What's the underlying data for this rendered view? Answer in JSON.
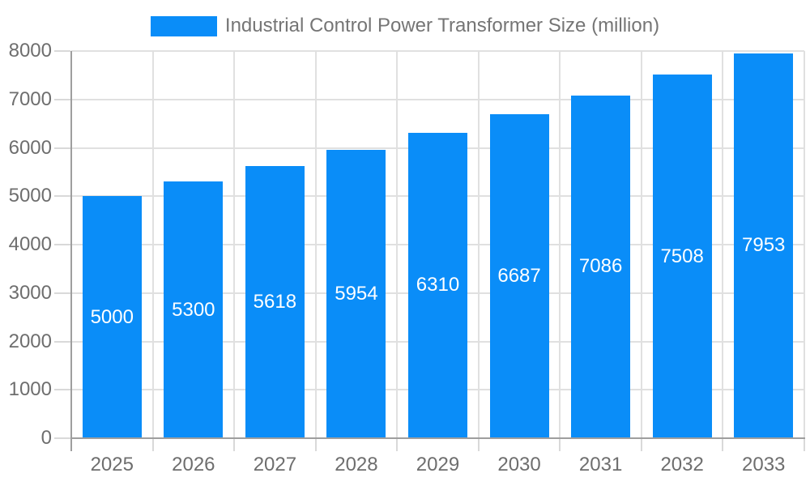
{
  "chart_data": {
    "type": "bar",
    "title": "Industrial Control Power Transformer Size (million)",
    "legend": [
      "Industrial Control Power Transformer Size (million)"
    ],
    "legend_position": "top",
    "categories": [
      "2025",
      "2026",
      "2027",
      "2028",
      "2029",
      "2030",
      "2031",
      "2032",
      "2033"
    ],
    "series": [
      {
        "name": "Industrial Control Power Transformer Size (million)",
        "values": [
          5000,
          5300,
          5618,
          5954,
          6310,
          6687,
          7086,
          7508,
          7953
        ]
      }
    ],
    "xlabel": "",
    "ylabel": "",
    "ylim": [
      0,
      8000
    ],
    "ytick_interval": 1000,
    "yticks": [
      0,
      1000,
      2000,
      3000,
      4000,
      5000,
      6000,
      7000,
      8000
    ],
    "grid": true,
    "bar_labels_visible": true,
    "colors": {
      "bar": "#0a8df8",
      "grid": "#e0e0e0",
      "axis": "#9e9e9e",
      "tick": "#d9d9d9",
      "axis_text": "#6e6e6e",
      "legend_text": "#757575",
      "bar_label_text": "#ffffff",
      "background": "#ffffff"
    }
  }
}
